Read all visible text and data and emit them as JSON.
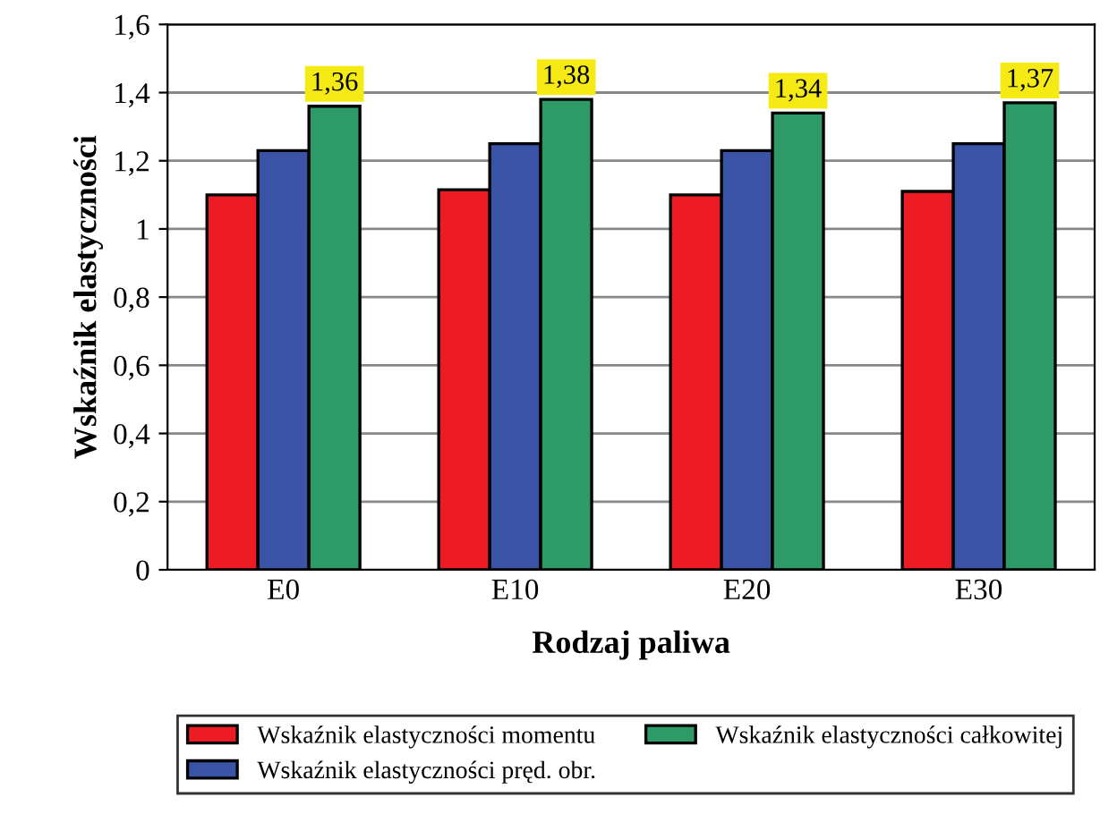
{
  "chart_data": {
    "type": "bar",
    "xlabel": "Rodzaj paliwa",
    "ylabel": "Wskaźnik elastyczności",
    "categories": [
      "E0",
      "E10",
      "E20",
      "E30"
    ],
    "series": [
      {
        "name": "Wskaźnik elastyczności momentu",
        "color": "#ed1c24",
        "values": [
          1.1,
          1.115,
          1.1,
          1.11
        ]
      },
      {
        "name": "Wskaźnik elastyczności pręd. obr.",
        "color": "#3a53a4",
        "values": [
          1.23,
          1.25,
          1.23,
          1.25
        ]
      },
      {
        "name": "Wskaźnik elastyczności całkowitej",
        "color": "#2e9a68",
        "values": [
          1.36,
          1.38,
          1.34,
          1.37
        ],
        "value_labels": [
          "1,36",
          "1,38",
          "1,34",
          "1,37"
        ]
      }
    ],
    "ylim": [
      0,
      1.6
    ],
    "yticks": [
      0,
      {
        "value": 0.2,
        "label": "0,2"
      },
      {
        "value": 0.4,
        "label": "0,4"
      },
      {
        "value": 0.6,
        "label": "0,6"
      },
      {
        "value": 0.8,
        "label": "0,8"
      },
      1,
      {
        "value": 1.2,
        "label": "1,2"
      },
      {
        "value": 1.4,
        "label": "1,4"
      },
      {
        "value": 1.6,
        "label": "1,6"
      }
    ],
    "grid": "y",
    "legend": "bottom"
  }
}
